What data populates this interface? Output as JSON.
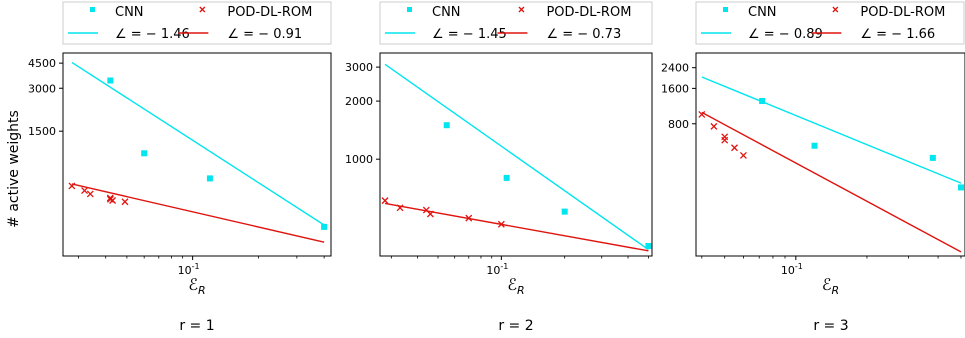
{
  "ylabel": "# active weights",
  "colors": {
    "cnn": "#00e5ee",
    "pod": "#e0140f"
  },
  "chart_data": [
    {
      "type": "scatter",
      "title": "r = 1",
      "xlabel": "ℰ_R",
      "xscale": "log",
      "yscale": "log",
      "xlim": [
        0.0255,
        0.43
      ],
      "ylim": [
        200,
        5300
      ],
      "xticks": [
        0.1
      ],
      "xtick_labels": [
        "10^-1"
      ],
      "yticks": [
        1500,
        3000,
        4500
      ],
      "ytick_labels": [
        "1500",
        "3000",
        "4500"
      ],
      "legend_placement": "top",
      "series": [
        {
          "name": "CNN",
          "marker": "square",
          "color": "#00e5ee",
          "x": [
            0.042,
            0.06,
            0.12,
            0.4
          ],
          "y": [
            3400,
            1050,
            700,
            320
          ]
        },
        {
          "name": "POD-DL-ROM",
          "marker": "x",
          "color": "#e0140f",
          "x": [
            0.028,
            0.032,
            0.034,
            0.042,
            0.042,
            0.043,
            0.049
          ],
          "y": [
            620,
            575,
            545,
            510,
            500,
            490,
            480
          ]
        }
      ],
      "fits": [
        {
          "name": "∠ = − 1.46",
          "color": "#00e5ee",
          "slope": -1.46,
          "x": [
            0.028,
            0.4
          ],
          "y": [
            4550,
            330
          ]
        },
        {
          "name": "∠ = − 0.91",
          "color": "#e0140f",
          "slope": -0.91,
          "x": [
            0.028,
            0.4
          ],
          "y": [
            640,
            250
          ]
        }
      ]
    },
    {
      "type": "scatter",
      "title": "r = 2",
      "xlabel": "ℰ_R",
      "xscale": "log",
      "yscale": "log",
      "xlim": [
        0.0265,
        0.52
      ],
      "ylim": [
        315,
        3550
      ],
      "xticks": [
        0.1
      ],
      "xtick_labels": [
        "10^-1"
      ],
      "yticks": [
        1000,
        2000,
        3000
      ],
      "ytick_labels": [
        "1000",
        "2000",
        "3000"
      ],
      "legend_placement": "top",
      "series": [
        {
          "name": "CNN",
          "marker": "square",
          "color": "#00e5ee",
          "x": [
            0.055,
            0.106,
            0.2,
            0.5
          ],
          "y": [
            1500,
            800,
            535,
            355
          ]
        },
        {
          "name": "POD-DL-ROM",
          "marker": "x",
          "color": "#e0140f",
          "x": [
            0.028,
            0.033,
            0.044,
            0.046,
            0.07,
            0.1
          ],
          "y": [
            610,
            560,
            545,
            520,
            495,
            460
          ]
        }
      ],
      "fits": [
        {
          "name": "∠ = − 1.45",
          "color": "#00e5ee",
          "slope": -1.45,
          "x": [
            0.028,
            0.5
          ],
          "y": [
            3100,
            340
          ]
        },
        {
          "name": "∠ = − 0.73",
          "color": "#e0140f",
          "slope": -0.73,
          "x": [
            0.028,
            0.5
          ],
          "y": [
            590,
            335
          ]
        }
      ]
    },
    {
      "type": "scatter",
      "title": "r = 3",
      "xlabel": "ℰ_R",
      "xscale": "log",
      "yscale": "log",
      "xlim": [
        0.0378,
        0.52
      ],
      "ylim": [
        60,
        3200
      ],
      "xticks": [
        0.1
      ],
      "xtick_labels": [
        "10^-1"
      ],
      "yticks": [
        800,
        1600,
        2400
      ],
      "ytick_labels": [
        "800",
        "1600",
        "2400"
      ],
      "legend_placement": "top",
      "series": [
        {
          "name": "CNN",
          "marker": "square",
          "color": "#00e5ee",
          "x": [
            0.072,
            0.12,
            0.38,
            0.5
          ],
          "y": [
            1250,
            520,
            410,
            230
          ]
        },
        {
          "name": "POD-DL-ROM",
          "marker": "x",
          "color": "#e0140f",
          "x": [
            0.04,
            0.045,
            0.05,
            0.05,
            0.055,
            0.06
          ],
          "y": [
            960,
            760,
            620,
            580,
            500,
            430
          ]
        }
      ],
      "fits": [
        {
          "name": "∠ = − 0.89",
          "color": "#00e5ee",
          "slope": -0.89,
          "x": [
            0.04,
            0.5
          ],
          "y": [
            2000,
            250
          ]
        },
        {
          "name": "∠ = − 1.66",
          "color": "#e0140f",
          "slope": -1.66,
          "x": [
            0.04,
            0.5
          ],
          "y": [
            1000,
            65
          ]
        }
      ]
    }
  ]
}
